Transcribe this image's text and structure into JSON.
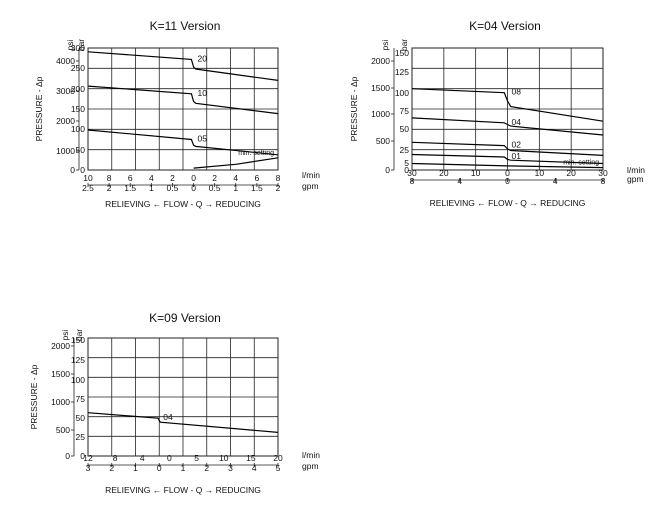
{
  "chart_data": [
    {
      "type": "line",
      "title": "K=11 Version",
      "ylabel": "PRESSURE - Δp",
      "unit_psi": "psi",
      "unit_bar": "bar",
      "psi_ticks": [
        "4000",
        "3000",
        "2000",
        "1000",
        "0"
      ],
      "bar_ticks": [
        "300",
        "250",
        "200",
        "150",
        "100",
        "50",
        "0"
      ],
      "ylim": [
        0,
        320
      ],
      "xlim": [
        -10,
        8
      ],
      "x_lmin_ticks": [
        "10",
        "8",
        "6",
        "4",
        "2",
        "0",
        "2",
        "4",
        "6",
        "8"
      ],
      "x_gpm_ticks": [
        "2.5",
        "2",
        "1.5",
        "1",
        "0.5",
        "0",
        "0.5",
        "1",
        "1.5",
        "2"
      ],
      "x_unit_lmin": "l/min",
      "x_unit_gpm": "gpm",
      "flow_label": "RELIEVING ← FLOW - Q → REDUCING",
      "annotation": "min. setting",
      "series": [
        {
          "name": "20",
          "x": [
            -10,
            -0.2,
            0,
            0.2,
            8
          ],
          "y": [
            310,
            290,
            270,
            265,
            235
          ]
        },
        {
          "name": "10",
          "x": [
            -10,
            -0.2,
            0,
            0.2,
            8
          ],
          "y": [
            220,
            200,
            180,
            175,
            148
          ]
        },
        {
          "name": "05",
          "x": [
            -10,
            -0.2,
            0,
            0.2,
            8
          ],
          "y": [
            105,
            80,
            65,
            62,
            40
          ]
        },
        {
          "name": "min. setting",
          "x": [
            0,
            4,
            8
          ],
          "y": [
            5,
            15,
            32
          ]
        }
      ]
    },
    {
      "type": "line",
      "title": "K=04 Version",
      "ylabel": "PRESSURE - Δp",
      "unit_psi": "psi",
      "unit_bar": "bar",
      "psi_ticks": [
        "2000",
        "1500",
        "1000",
        "500",
        "0"
      ],
      "bar_ticks": [
        "150",
        "125",
        "100",
        "75",
        "50",
        "25",
        "5",
        "0"
      ],
      "ylim": [
        0,
        150
      ],
      "xlim": [
        -30,
        30
      ],
      "x_lmin_ticks": [
        "30",
        "20",
        "10",
        "0",
        "10",
        "20",
        "30"
      ],
      "x_gpm_ticks": [
        "8",
        "4",
        "0",
        "4",
        "8"
      ],
      "x_unit_lmin": "l/min",
      "x_unit_gpm": "gpm",
      "flow_label": "RELIEVING ← FLOW - Q → REDUCING",
      "annotation": "min. setting",
      "series": [
        {
          "name": "08",
          "x": [
            -30,
            -1,
            0,
            1,
            30
          ],
          "y": [
            100,
            95,
            85,
            78,
            60
          ]
        },
        {
          "name": "04",
          "x": [
            -30,
            -1,
            0,
            1,
            30
          ],
          "y": [
            64,
            58,
            56,
            54,
            43
          ]
        },
        {
          "name": "02",
          "x": [
            -30,
            -1,
            0,
            1,
            30
          ],
          "y": [
            34,
            30,
            26,
            24,
            18
          ]
        },
        {
          "name": "01",
          "x": [
            -30,
            -1,
            0,
            1,
            30
          ],
          "y": [
            19,
            16,
            13,
            12,
            8
          ]
        },
        {
          "name": "min. setting",
          "x": [
            -30,
            0,
            30
          ],
          "y": [
            8,
            5,
            3
          ]
        }
      ]
    },
    {
      "type": "line",
      "title": "K=09 Version",
      "ylabel": "PRESSURE - Δp",
      "unit_psi": "psi",
      "unit_bar": "bar",
      "psi_ticks": [
        "2000",
        "1500",
        "1000",
        "500",
        "0"
      ],
      "bar_ticks": [
        "150",
        "125",
        "100",
        "75",
        "50",
        "25",
        "0"
      ],
      "ylim": [
        0,
        150
      ],
      "xlim": [
        -12,
        20
      ],
      "x_lmin_ticks": [
        "12",
        "8",
        "4",
        "0",
        "5",
        "10",
        "15",
        "20"
      ],
      "x_gpm_ticks": [
        "3",
        "2",
        "1",
        "0",
        "1",
        "2",
        "3",
        "4",
        "5"
      ],
      "x_unit_lmin": "l/min",
      "x_unit_gpm": "gpm",
      "flow_label": "RELIEVING ← FLOW - Q → REDUCING",
      "series": [
        {
          "name": "04",
          "x": [
            -12,
            -0.2,
            0,
            0.2,
            20
          ],
          "y": [
            55,
            48,
            45,
            43,
            30
          ]
        }
      ]
    }
  ]
}
